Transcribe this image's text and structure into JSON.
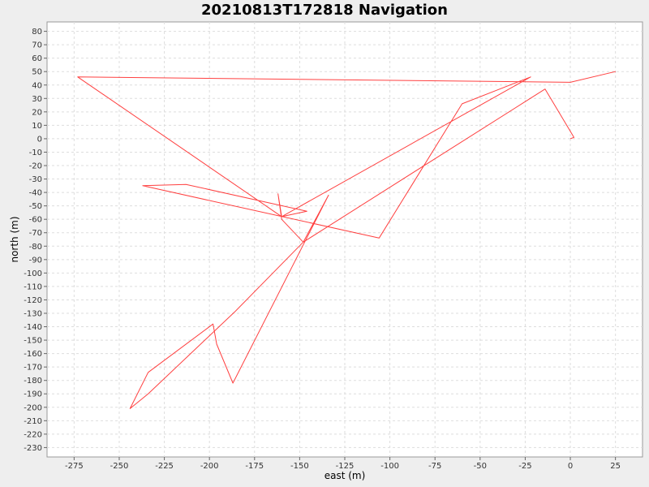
{
  "chart_data": {
    "type": "line",
    "title": "20210813T172818 Navigation",
    "xlabel": "east (m)",
    "ylabel": "north (m)",
    "xlim": [
      -290,
      40
    ],
    "ylim": [
      -237,
      87
    ],
    "xticks": [
      -275,
      -250,
      -225,
      -200,
      -175,
      -150,
      -125,
      -100,
      -75,
      -50,
      -25,
      0,
      25
    ],
    "yticks": [
      80,
      70,
      60,
      50,
      40,
      30,
      20,
      10,
      0,
      -10,
      -20,
      -30,
      -40,
      -50,
      -60,
      -70,
      -80,
      -90,
      -100,
      -110,
      -120,
      -130,
      -140,
      -150,
      -160,
      -170,
      -180,
      -190,
      -200,
      -210,
      -220,
      -230
    ],
    "grid": true,
    "series": [
      {
        "color": "#ff0000",
        "points": [
          [
            0,
            0
          ],
          [
            2,
            1
          ],
          [
            -14,
            37
          ],
          [
            -148,
            -77
          ],
          [
            -186,
            -129
          ],
          [
            -234,
            -190
          ],
          [
            -244,
            -201
          ],
          [
            -234,
            -174
          ],
          [
            -198,
            -138
          ],
          [
            -196,
            -153
          ],
          [
            -187,
            -182
          ],
          [
            -134,
            -42
          ],
          [
            -148,
            -77
          ],
          [
            -160,
            -60
          ],
          [
            -162,
            -41
          ],
          [
            -160,
            -58
          ],
          [
            -273,
            46
          ],
          [
            0,
            42
          ],
          [
            25,
            50
          ],
          [
            0,
            42
          ],
          [
            -273,
            46
          ],
          [
            -160,
            -58
          ],
          [
            -22,
            46
          ],
          [
            -60,
            26
          ],
          [
            -106,
            -74
          ],
          [
            -237,
            -35
          ],
          [
            -213,
            -34
          ],
          [
            -146,
            -54
          ],
          [
            -160,
            -58
          ],
          [
            -22,
            46
          ]
        ]
      }
    ]
  }
}
